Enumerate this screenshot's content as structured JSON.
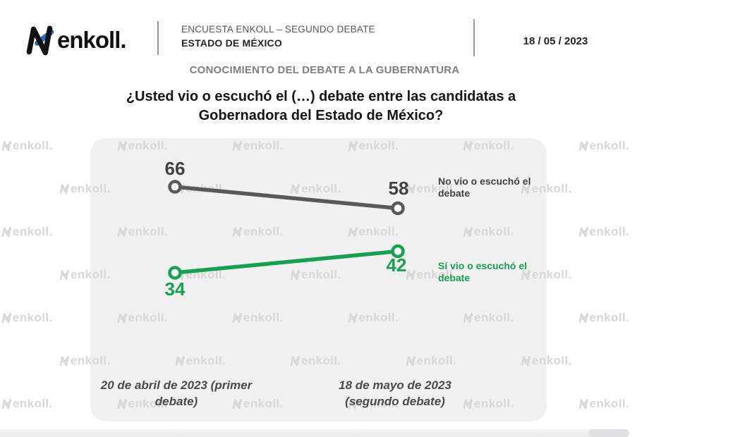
{
  "header": {
    "logo_text": "enkoll.",
    "survey_title": "ENCUESTA ENKOLL – SEGUNDO DEBATE",
    "survey_region": "ESTADO DE MÉXICO",
    "date": "18 / 05 / 2023"
  },
  "section_title": "CONOCIMIENTO DEL DEBATE A LA GUBERNATURA",
  "question": "¿Usted vio o escuchó el (…) debate entre las candidatas a\nGobernadora del Estado de México?",
  "watermark": {
    "text": "enkoll."
  },
  "colors": {
    "logo_ink": "#111111",
    "logo_accent": "#2E6DB4",
    "panel_background": "#f1f1f2",
    "watermark": "#d7d7d8"
  },
  "chart_data": {
    "type": "line",
    "categories": [
      "20 de abril de 2023 (primer debate)",
      "18 de mayo de 2023 (segundo debate)"
    ],
    "series": [
      {
        "name": "No vio o escuchó el debate",
        "values": [
          66,
          58
        ],
        "line_color": "#58595B",
        "label_color": "#414042",
        "value_label_position": "above"
      },
      {
        "name": "Sí vio o escuchó el debate",
        "values": [
          34,
          42
        ],
        "line_color": "#17A04F",
        "label_color": "#17A04F",
        "value_label_position": "below"
      }
    ],
    "title": "¿Usted vio o escuchó el (…) debate entre las candidatas a Gobernadora del Estado de México?",
    "xlabel": "",
    "ylabel": "",
    "ylim": [
      0,
      100
    ],
    "grid": false,
    "legend_position": "right",
    "markers": "open-circle",
    "value_labels_shown": true
  }
}
